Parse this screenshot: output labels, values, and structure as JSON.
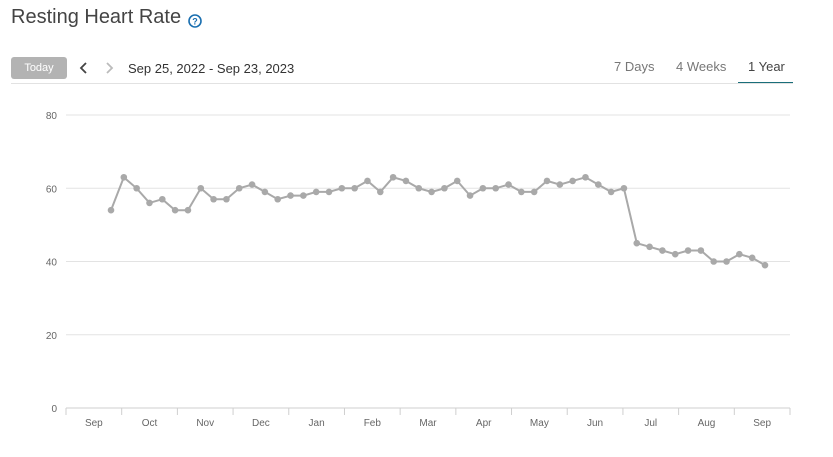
{
  "header": {
    "title": "Resting Heart Rate",
    "help_icon": "help-circle-icon",
    "accent_color": "#1a6fb0"
  },
  "toolbar": {
    "today_label": "Today",
    "prev_icon": "chevron-left-icon",
    "next_icon": "chevron-right-icon",
    "date_range": "Sep 25, 2022 - Sep 23, 2023",
    "tabs": [
      {
        "label": "7 Days",
        "active": false
      },
      {
        "label": "4 Weeks",
        "active": false
      },
      {
        "label": "1 Year",
        "active": true
      }
    ],
    "active_tab_color": "#1a6e7a"
  },
  "chart_data": {
    "type": "line",
    "title": "",
    "xlabel": "",
    "ylabel": "",
    "ylim": [
      0,
      80
    ],
    "yticks": [
      0,
      20,
      40,
      60,
      80
    ],
    "xticks": [
      "Sep",
      "Oct",
      "Nov",
      "Dec",
      "Jan",
      "Feb",
      "Mar",
      "Apr",
      "May",
      "Jun",
      "Jul",
      "Aug",
      "Sep"
    ],
    "grid": true,
    "color": "#a9a9a9",
    "series": [
      {
        "values": [
          54,
          63,
          60,
          56,
          57,
          54,
          54,
          60,
          57,
          57,
          60,
          61,
          59,
          57,
          58,
          58,
          59,
          59,
          60,
          60,
          62,
          59,
          63,
          62,
          60,
          59,
          60,
          62,
          58,
          60,
          60,
          61,
          59,
          59,
          62,
          61,
          62,
          63,
          61,
          59,
          60,
          45,
          44,
          43,
          42,
          43,
          43,
          40,
          40,
          42,
          41,
          39
        ]
      }
    ]
  }
}
